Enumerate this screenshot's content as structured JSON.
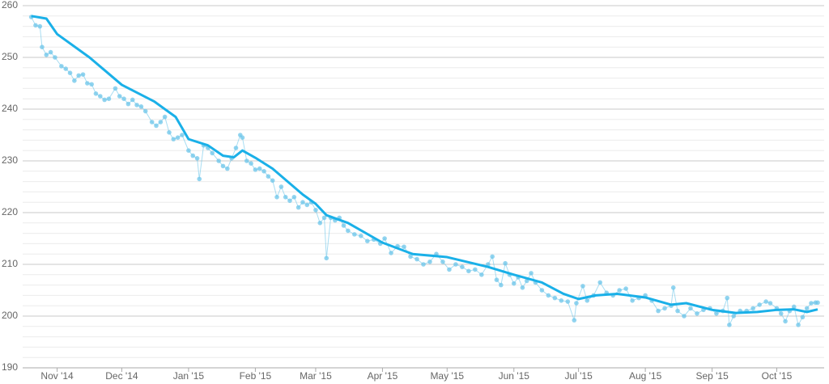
{
  "chart_data": {
    "type": "line",
    "xlim": [
      -16,
      356
    ],
    "xticks": [
      {
        "value": 0,
        "label": "Nov '14"
      },
      {
        "value": 30,
        "label": "Dec '14"
      },
      {
        "value": 61,
        "label": "Jan '15"
      },
      {
        "value": 92,
        "label": "Feb '15"
      },
      {
        "value": 120,
        "label": "Mar '15"
      },
      {
        "value": 151,
        "label": "Apr '15"
      },
      {
        "value": 181,
        "label": "May '15"
      },
      {
        "value": 212,
        "label": "Jun '15"
      },
      {
        "value": 242,
        "label": "Jul '15"
      },
      {
        "value": 273,
        "label": "Aug '15"
      },
      {
        "value": 304,
        "label": "Sep '15"
      },
      {
        "value": 334,
        "label": "Oct '15"
      }
    ],
    "ylim": [
      190,
      260
    ],
    "yticks": [
      190,
      200,
      210,
      220,
      230,
      240,
      250,
      260
    ],
    "minor_yticks": [
      192,
      194,
      196,
      198,
      202,
      204,
      206,
      208,
      212,
      214,
      216,
      218,
      222,
      224,
      226,
      228,
      232,
      234,
      236,
      238,
      242,
      244,
      246,
      248,
      252,
      254,
      256,
      258
    ],
    "grid": true,
    "series": [
      {
        "type": "scatter",
        "color": "#6ec6ea",
        "x": [
          -12,
          -10,
          -8,
          -7,
          -5,
          -3,
          -1,
          2,
          4,
          6,
          8,
          10,
          12,
          14,
          16,
          18,
          20,
          22,
          24,
          27,
          29,
          31,
          33,
          35,
          37,
          39,
          41,
          44,
          46,
          48,
          50,
          52,
          54,
          56,
          58,
          61,
          63,
          65,
          66,
          68,
          70,
          72,
          75,
          77,
          79,
          81,
          83,
          85,
          86,
          88,
          90,
          92,
          94,
          96,
          98,
          100,
          102,
          104,
          106,
          108,
          110,
          112,
          114,
          116,
          118,
          120,
          122,
          124,
          125,
          127,
          129,
          131,
          133,
          135,
          138,
          141,
          144,
          147,
          150,
          152,
          155,
          158,
          161,
          164,
          167,
          170,
          173,
          176,
          179,
          182,
          185,
          188,
          191,
          194,
          197,
          200,
          202,
          204,
          206,
          208,
          210,
          212,
          214,
          216,
          218,
          220,
          222,
          225,
          228,
          231,
          234,
          237,
          240,
          241,
          244,
          246,
          249,
          252,
          255,
          258,
          261,
          264,
          267,
          270,
          273,
          276,
          279,
          282,
          285,
          286,
          288,
          291,
          294,
          297,
          300,
          303,
          306,
          309,
          311,
          312,
          314,
          317,
          320,
          323,
          326,
          329,
          331,
          334,
          336,
          338,
          340,
          342,
          344,
          346,
          348,
          350,
          352,
          353
        ],
        "values": [
          257.8,
          256.2,
          256,
          252,
          250.5,
          251,
          250,
          248.3,
          247.8,
          247,
          245.5,
          246.5,
          246.7,
          245,
          244.8,
          243,
          242.5,
          241.8,
          242,
          244,
          242.5,
          242,
          241,
          241.8,
          240.8,
          240.5,
          239.6,
          237.5,
          236.8,
          237.5,
          238.5,
          235.5,
          234.2,
          234.5,
          235,
          232,
          231,
          230.5,
          226.5,
          233,
          232.5,
          231.5,
          230,
          229,
          228.5,
          230.5,
          232.5,
          235,
          234.5,
          230,
          229.5,
          228.3,
          228.5,
          228,
          227,
          226.2,
          223,
          225,
          223,
          222.3,
          223,
          221,
          222,
          221.5,
          222,
          220.5,
          218,
          219,
          211.2,
          219,
          218.5,
          219,
          217.5,
          216.5,
          215.8,
          215.5,
          214.5,
          214.8,
          214,
          215,
          212.2,
          213.5,
          213.4,
          211.5,
          211,
          210,
          210.5,
          212,
          210.5,
          209,
          210,
          209.5,
          208.7,
          209,
          208,
          210,
          211.5,
          207,
          206,
          210.2,
          208,
          206.3,
          207.5,
          205.5,
          206.8,
          208.3,
          206.5,
          205,
          204,
          203.5,
          203,
          202.8,
          199.2,
          202.5,
          205.8,
          203,
          204,
          206.5,
          204.5,
          204,
          205,
          205.3,
          203,
          203.5,
          204,
          203,
          201,
          201.5,
          202,
          205.5,
          201,
          200,
          201.5,
          200.5,
          201.2,
          201.5,
          200.5,
          201,
          203.5,
          198.3,
          200,
          201,
          201,
          201.5,
          202.2,
          202.8,
          202.5,
          201.5,
          200.5,
          199,
          201,
          201.8,
          198.3,
          199.8,
          201.5,
          202.5,
          202.6,
          202.6
        ]
      },
      {
        "type": "line",
        "color": "#1ab0e8",
        "x": [
          -12,
          -5,
          0,
          15,
          30,
          45,
          55,
          61,
          70,
          77,
          82,
          86,
          92,
          100,
          107,
          114,
          120,
          125,
          135,
          151,
          165,
          181,
          200,
          212,
          225,
          235,
          242,
          250,
          260,
          273,
          285,
          292,
          304,
          315,
          325,
          334,
          342,
          348,
          353
        ],
        "values": [
          258,
          257.5,
          254.5,
          250,
          244.7,
          241.5,
          238.5,
          234.2,
          233,
          231,
          230.7,
          232,
          230.6,
          228.5,
          226,
          223.5,
          221.7,
          219.5,
          218,
          214.2,
          212,
          211.4,
          209.5,
          208,
          206.5,
          204.3,
          203.3,
          204,
          204.3,
          203.6,
          202.2,
          202.5,
          201.2,
          200.6,
          200.8,
          201.2,
          201.3,
          200.8,
          201.3
        ]
      }
    ]
  }
}
